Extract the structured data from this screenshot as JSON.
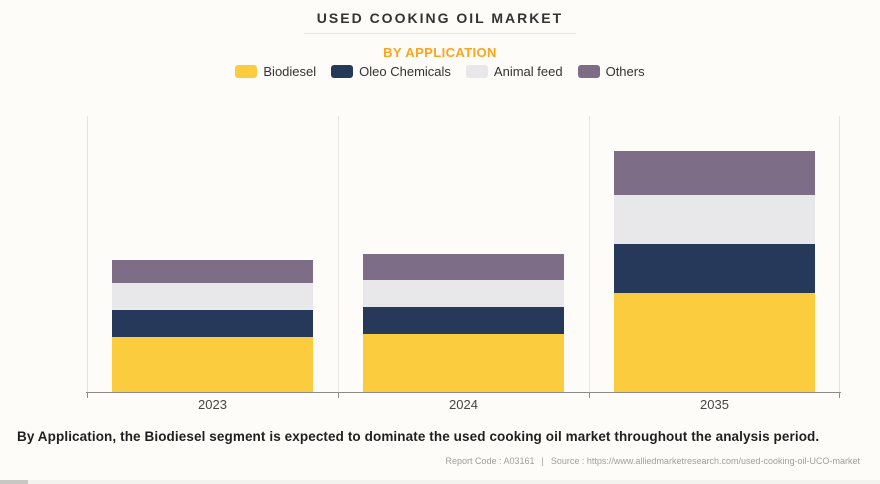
{
  "header": {
    "title": "USED COOKING OIL MARKET",
    "subtitle": "BY APPLICATION"
  },
  "chart_data": {
    "type": "bar",
    "variant": "stacked-vertical",
    "title": "USED COOKING OIL MARKET",
    "subtitle": "BY APPLICATION",
    "categories": [
      "2023",
      "2024",
      "2035"
    ],
    "series": [
      {
        "name": "Biodiesel",
        "color": "#facc3e",
        "values": [
          55,
          58,
          99
        ]
      },
      {
        "name": "Oleo Chemicals",
        "color": "#26395b",
        "values": [
          27,
          27,
          49
        ]
      },
      {
        "name": "Animal feed",
        "color": "#e8e7ea",
        "values": [
          27,
          27,
          49
        ]
      },
      {
        "name": "Others",
        "color": "#7d6d87",
        "values": [
          23,
          26,
          44
        ]
      }
    ],
    "value_note": "relative units estimated from pixel heights; no y-axis labels shown",
    "ylim": [
      0,
      276
    ],
    "y_axis_labels_visible": false,
    "grid": "vertical-category-separators-only",
    "legend_position": "top-center",
    "bar_width_fraction": 0.8,
    "totals": [
      132,
      138,
      241
    ]
  },
  "colors": {
    "background": "#fdfcf9",
    "subtitle_accent": "#faa51c",
    "gridline": "#e8e5e1",
    "axis_line": "#8c8c8c"
  },
  "caption": "By Application, the Biodiesel segment is expected to dominate the used cooking oil market throughout the analysis period.",
  "footer": {
    "report_code": "Report Code : A03161",
    "separator": "|",
    "source": "Source : https://www.alliedmarketresearch.com/used-cooking-oil-UCO-market"
  }
}
